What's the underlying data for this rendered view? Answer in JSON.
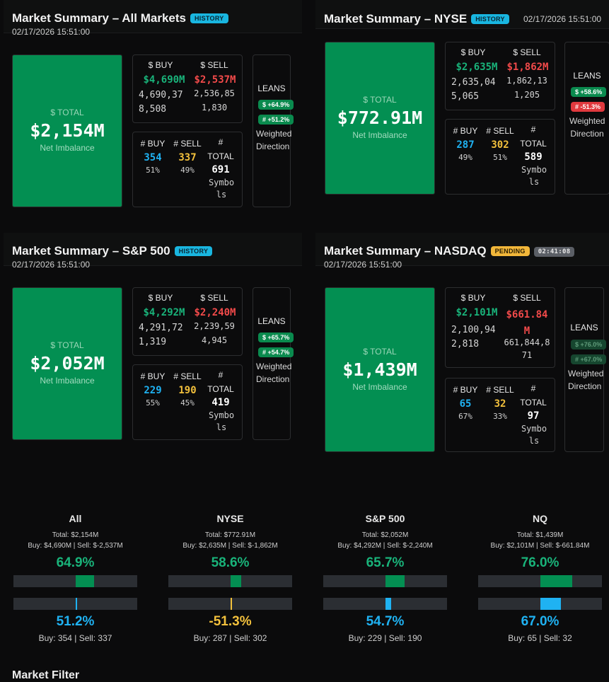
{
  "panels": {
    "all": {
      "title": "Market Summary – All Markets",
      "badge": "HISTORY",
      "date": "02/17/2026 15:51:00",
      "total_label": "$ TOTAL",
      "total_value": "$2,154M",
      "total_sub": "Net Imbalance",
      "buy_label": "$ BUY",
      "sell_label": "$ SELL",
      "buy_value": "$4,690M",
      "sell_value": "$2,537M",
      "buy_raw": "4,690,378,508",
      "sell_raw": "2,536,851,830",
      "cnt_buy_label": "# BUY",
      "cnt_sell_label": "# SELL",
      "cnt_total_label": "# TOTAL",
      "cnt_buy": "354",
      "cnt_sell": "337",
      "cnt_total": "691",
      "pct_buy": "51%",
      "pct_sell": "49%",
      "symbols": "Symbols",
      "leans_label": "LEANS",
      "lean_dollar": "$ +64.9%",
      "lean_count": "# +51.2%",
      "weighted": "Weighted Direction"
    },
    "nyse": {
      "title": "Market Summary – NYSE",
      "badge": "HISTORY",
      "date": "02/17/2026 15:51:00",
      "total_label": "$ TOTAL",
      "total_value": "$772.91M",
      "total_sub": "Net Imbalance",
      "buy_label": "$ BUY",
      "sell_label": "$ SELL",
      "buy_value": "$2,635M",
      "sell_value": "$1,862M",
      "buy_raw": "2,635,045,065",
      "sell_raw": "1,862,131,205",
      "cnt_buy_label": "# BUY",
      "cnt_sell_label": "# SELL",
      "cnt_total_label": "# TOTAL",
      "cnt_buy": "287",
      "cnt_sell": "302",
      "cnt_total": "589",
      "pct_buy": "49%",
      "pct_sell": "51%",
      "symbols": "Symbols",
      "leans_label": "LEANS",
      "lean_dollar": "$ +58.6%",
      "lean_count": "# -51.3%",
      "weighted": "Weighted Direction"
    },
    "sp500": {
      "title": "Market Summary – S&P 500",
      "badge": "HISTORY",
      "date": "02/17/2026 15:51:00",
      "total_label": "$ TOTAL",
      "total_value": "$2,052M",
      "total_sub": "Net Imbalance",
      "buy_label": "$ BUY",
      "sell_label": "$ SELL",
      "buy_value": "$4,292M",
      "sell_value": "$2,240M",
      "buy_raw": "4,291,721,319",
      "sell_raw": "2,239,594,945",
      "cnt_buy_label": "# BUY",
      "cnt_sell_label": "# SELL",
      "cnt_total_label": "# TOTAL",
      "cnt_buy": "229",
      "cnt_sell": "190",
      "cnt_total": "419",
      "pct_buy": "55%",
      "pct_sell": "45%",
      "symbols": "Symbols",
      "leans_label": "LEANS",
      "lean_dollar": "$ +65.7%",
      "lean_count": "# +54.7%",
      "weighted": "Weighted Direction"
    },
    "nasdaq": {
      "title": "Market Summary – NASDAQ",
      "badge": "PENDING",
      "timer": "02:41:08",
      "date": "02/17/2026 15:51:00",
      "total_label": "$ TOTAL",
      "total_value": "$1,439M",
      "total_sub": "Net Imbalance",
      "buy_label": "$ BUY",
      "sell_label": "$ SELL",
      "buy_value": "$2,101M",
      "sell_value": "$661.84M",
      "buy_raw": "2,100,942,818",
      "sell_raw": "661,844,871",
      "cnt_buy_label": "# BUY",
      "cnt_sell_label": "# SELL",
      "cnt_total_label": "# TOTAL",
      "cnt_buy": "65",
      "cnt_sell": "32",
      "cnt_total": "97",
      "pct_buy": "67%",
      "pct_sell": "33%",
      "symbols": "Symbols",
      "leans_label": "LEANS",
      "lean_dollar": "$ +76.0%",
      "lean_count": "# +67.0%",
      "weighted": "Weighted Direction"
    }
  },
  "summary": [
    {
      "name": "All",
      "total": "Total: $2,154M",
      "buysell": "Buy: $4,690M | Sell: $-2,537M",
      "dollar_pct": "64.9%",
      "dollar_lean": 64.9,
      "count_pct": "51.2%",
      "count_lean": 51.2,
      "counts": "Buy: 354 | Sell: 337"
    },
    {
      "name": "NYSE",
      "total": "Total: $772.91M",
      "buysell": "Buy: $2,635M | Sell: $-1,862M",
      "dollar_pct": "58.6%",
      "dollar_lean": 58.6,
      "count_pct": "-51.3%",
      "count_lean": -51.3,
      "counts": "Buy: 287 | Sell: 302"
    },
    {
      "name": "S&P 500",
      "total": "Total: $2,052M",
      "buysell": "Buy: $4,292M | Sell: $-2,240M",
      "dollar_pct": "65.7%",
      "dollar_lean": 65.7,
      "count_pct": "54.7%",
      "count_lean": 54.7,
      "counts": "Buy: 229 | Sell: 190"
    },
    {
      "name": "NQ",
      "total": "Total: $1,439M",
      "buysell": "Buy: $2,101M | Sell: $-661.84M",
      "dollar_pct": "76.0%",
      "dollar_lean": 76.0,
      "count_pct": "67.0%",
      "count_lean": 67.0,
      "counts": "Buy: 65 | Sell: 32"
    }
  ],
  "filter_title": "Market Filter",
  "colors": {
    "total_bg": "#038f52",
    "buy": "#19b37a",
    "sell": "#f24a4a",
    "count_buy": "#1fb2f2",
    "count_sell": "#f2c03c"
  }
}
